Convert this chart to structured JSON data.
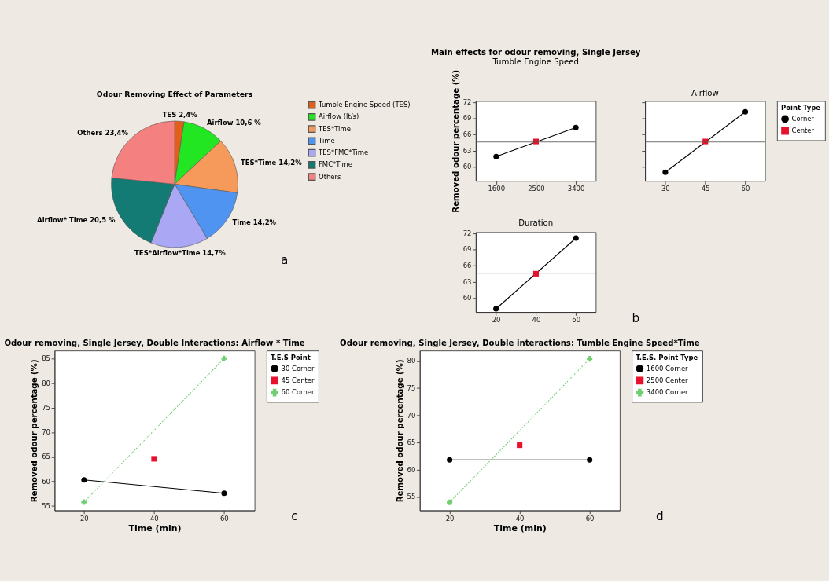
{
  "chart_data": [
    {
      "type": "pie",
      "title": "Odour Removing Effect of Parameters",
      "categories": [
        "Tumble Engine Speed (TES)",
        "Airflow (lt/s)",
        "TES*Time",
        "Time",
        "TES*FMC*Time",
        "FMC*Time",
        "Others"
      ],
      "values": [
        2.4,
        10.6,
        14.2,
        14.2,
        14.7,
        20.5,
        23.4
      ],
      "colors": [
        "#e0601a",
        "#22e622",
        "#f59a5a",
        "#4f94f0",
        "#aaa8f5",
        "#137a74",
        "#f58080"
      ],
      "value_labels": [
        "TES 2,4%",
        "Airflow 10,6 %",
        "TES*Time 14,2%",
        "Time 14,2%",
        "TES*Airflow*Time  14,7%",
        "Airflow* Time 20,5 %",
        "Others 23,4%"
      ],
      "legend": "top right",
      "annotations": [
        "a"
      ]
    },
    {
      "type": "line",
      "title": "Main effects for odour removing, Single Jersey",
      "subtitle": "Tumble Engine Speed",
      "ylabel": "Removed odour percentage (%)",
      "xlim": [
        1140,
        3850
      ],
      "xticks": [
        1600,
        2500,
        3400
      ],
      "ylim": [
        57.4,
        72.2
      ],
      "yticks": [
        60,
        63,
        66,
        69,
        72
      ],
      "series": [
        {
          "color": "#000000",
          "x": [
            1600,
            3400
          ],
          "values": [
            61.9,
            67.3
          ],
          "marker": "circle"
        },
        {
          "color": "#e8102a",
          "type": "scatter",
          "x": [
            2500
          ],
          "values": [
            64.7
          ],
          "marker": "square"
        }
      ],
      "ref_lines": [
        {
          "axis": "y",
          "value": 64.6
        }
      ],
      "grid": false,
      "legend": false
    },
    {
      "type": "line",
      "subtitle": "Airflow",
      "xlim": [
        22.4,
        67.4
      ],
      "xticks": [
        30,
        45,
        60
      ],
      "ylim": [
        57.4,
        72.2
      ],
      "yticks": [
        60,
        63,
        66,
        69,
        72
      ],
      "tick_labels": "x",
      "series": [
        {
          "name": "Corner",
          "color": "#000000",
          "x": [
            30,
            60
          ],
          "values": [
            59.0,
            70.2
          ],
          "marker": "circle"
        },
        {
          "name": "Center",
          "color": "#e8102a",
          "type": "scatter",
          "x": [
            45
          ],
          "values": [
            64.7
          ],
          "marker": "square"
        }
      ],
      "ref_lines": [
        {
          "axis": "y",
          "value": 64.6
        }
      ],
      "grid": false,
      "legend": "top right",
      "legend_title": "Point Type"
    },
    {
      "type": "line",
      "subtitle": "Duration",
      "xlim": [
        9.9,
        69.9
      ],
      "xticks": [
        20,
        40,
        60
      ],
      "ylim": [
        57.4,
        72.2
      ],
      "yticks": [
        60,
        63,
        66,
        69,
        72
      ],
      "series": [
        {
          "color": "#000000",
          "x": [
            20,
            60
          ],
          "values": [
            58.0,
            71.1
          ],
          "marker": "circle"
        },
        {
          "color": "#e8102a",
          "type": "scatter",
          "x": [
            40
          ],
          "values": [
            64.5
          ],
          "marker": "square"
        }
      ],
      "ref_lines": [
        {
          "axis": "y",
          "value": 64.6
        }
      ],
      "grid": false,
      "legend": false,
      "annotations": [
        "b"
      ]
    },
    {
      "type": "line",
      "title": "Odour removing, Single Jersey, Double Interactions: Airflow * Time",
      "xlabel": "Time (min)",
      "ylabel": "Removed odour percentage (%)",
      "xlim": [
        11.6,
        68.7
      ],
      "xticks": [
        20,
        40,
        60
      ],
      "ylim": [
        54.1,
        86.6
      ],
      "yticks": [
        55,
        60,
        65,
        70,
        75,
        80,
        85
      ],
      "series": [
        {
          "name": "30 Corner",
          "color": "#000000",
          "x": [
            20,
            60
          ],
          "values": [
            60.3,
            57.6
          ],
          "marker": "circle",
          "line_style": "solid"
        },
        {
          "name": "45 Center",
          "color": "#e8102a",
          "type": "scatter",
          "x": [
            40
          ],
          "values": [
            64.6
          ],
          "marker": "square"
        },
        {
          "name": "60 Corner",
          "color": "#6fcf6f",
          "x": [
            20,
            60
          ],
          "values": [
            55.8,
            85.0
          ],
          "marker": "cross",
          "line_style": "dotted"
        }
      ],
      "grid": false,
      "legend": "top right",
      "legend_title": "T.E.S Point",
      "annotations": [
        "c"
      ]
    },
    {
      "type": "line",
      "title": "Odour removing, Single Jersey, Double interactions: Tumble Engine Speed*Time",
      "xlabel": "Time (min)",
      "ylabel": "Removed odour percentage (%)",
      "xlim": [
        11.5,
        68.6
      ],
      "xticks": [
        20,
        40,
        60
      ],
      "ylim": [
        52.5,
        81.9
      ],
      "yticks": [
        55,
        60,
        65,
        70,
        75,
        80
      ],
      "series": [
        {
          "name": "1600 Corner",
          "color": "#000000",
          "x": [
            20,
            60
          ],
          "values": [
            61.8,
            61.8
          ],
          "marker": "circle",
          "line_style": "solid"
        },
        {
          "name": "2500 Center",
          "color": "#e8102a",
          "type": "scatter",
          "x": [
            40
          ],
          "values": [
            64.5
          ],
          "marker": "square"
        },
        {
          "name": "3400 Corner",
          "color": "#6fcf6f",
          "x": [
            20,
            60
          ],
          "values": [
            54.0,
            80.4
          ],
          "marker": "cross",
          "line_style": "dotted"
        }
      ],
      "grid": false,
      "legend": "top right",
      "legend_title": "T.E.S. Point Type",
      "annotations": [
        "d"
      ]
    }
  ]
}
